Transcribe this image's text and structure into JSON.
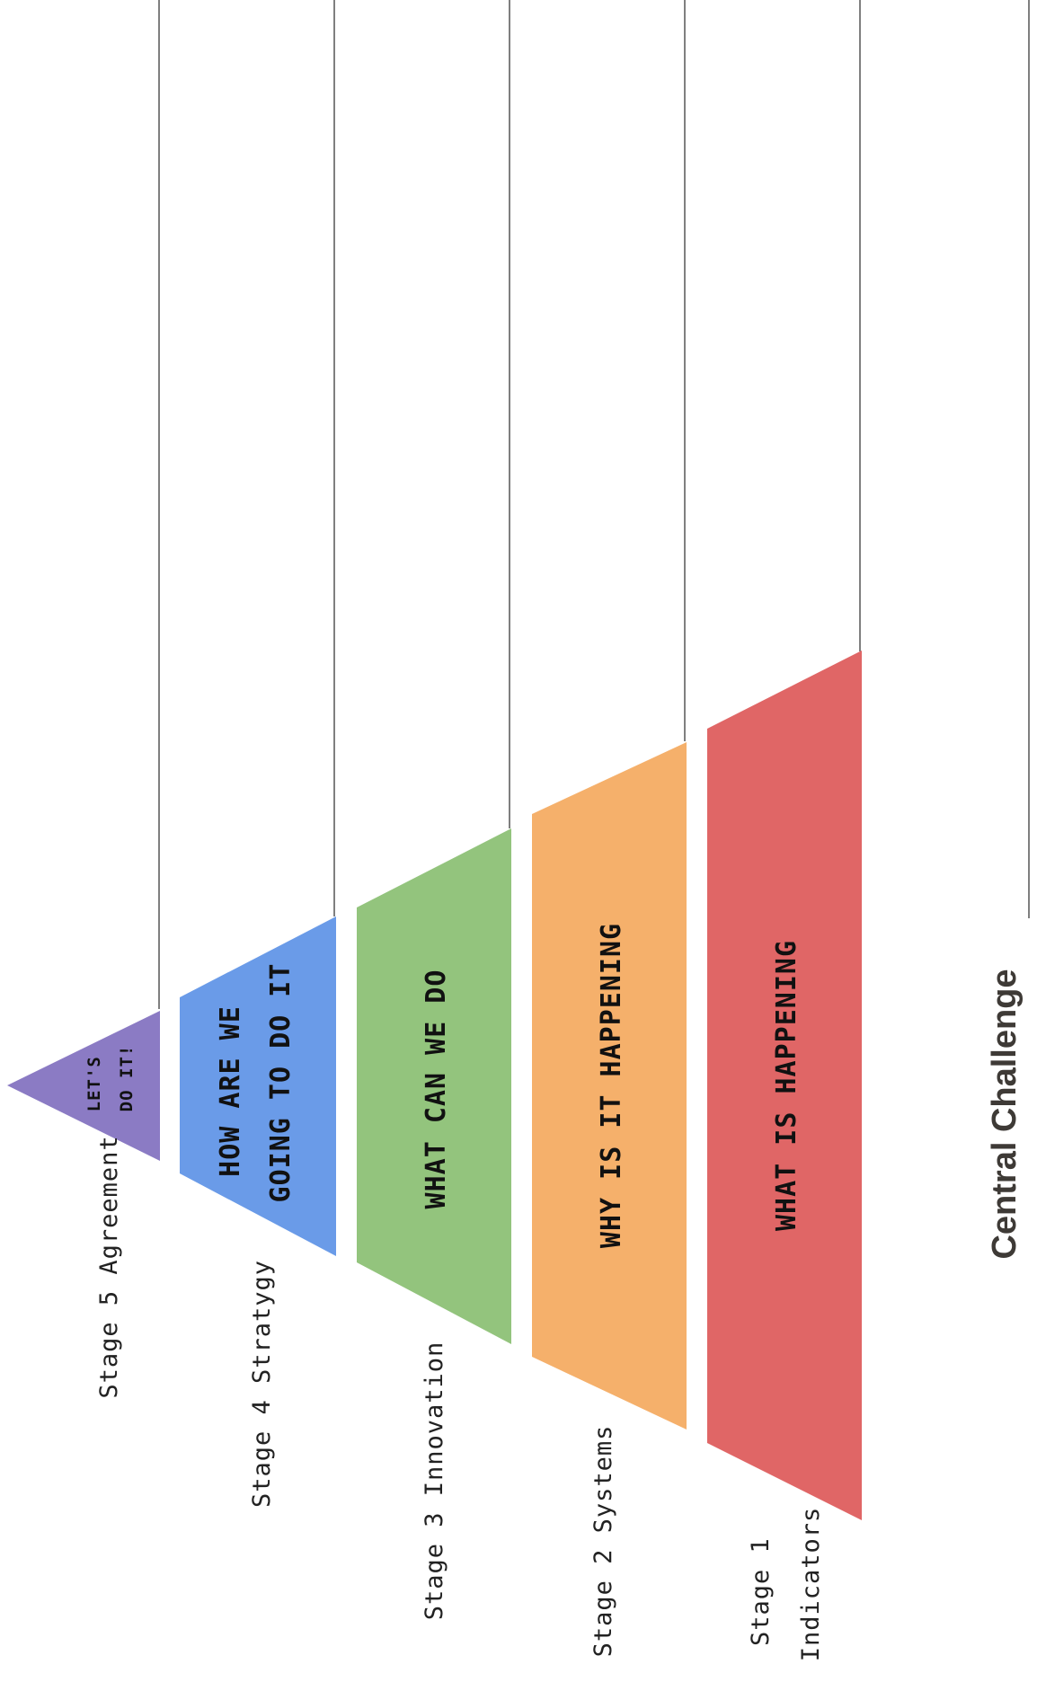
{
  "central_challenge": {
    "label": "Central Challenge"
  },
  "layers": [
    {
      "id": "stage-5",
      "stage_label": "Stage 5 Agreement",
      "text_lines": [
        "LET'S",
        "DO IT!"
      ],
      "color": "#8b7bc4"
    },
    {
      "id": "stage-4",
      "stage_label": "Stage 4 Stratygy",
      "text_lines": [
        "HOW ARE WE",
        "GOING TO DO IT"
      ],
      "color": "#6a9be8"
    },
    {
      "id": "stage-3",
      "stage_label": "Stage 3 Innovation",
      "text_lines": [
        "WHAT CAN WE DO"
      ],
      "color": "#93c47d"
    },
    {
      "id": "stage-2",
      "stage_label": "Stage 2 Systems",
      "text_lines": [
        "WHY IS IT HAPPENING"
      ],
      "color": "#f5b06b"
    },
    {
      "id": "stage-1",
      "stage_label": "Stage 1 Indicators",
      "stage_label_lines": [
        "Stage 1",
        "Indicators"
      ],
      "text_lines": [
        "WHAT IS HAPPENING"
      ],
      "color": "#e06666"
    }
  ]
}
